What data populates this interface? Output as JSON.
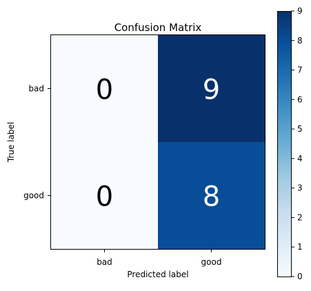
{
  "chart_data": {
    "type": "heatmap",
    "title": "Confusion Matrix",
    "xlabel": "Predicted label",
    "ylabel": "True label",
    "row_labels": [
      "bad",
      "good"
    ],
    "col_labels": [
      "bad",
      "good"
    ],
    "values": [
      [
        0,
        9
      ],
      [
        0,
        8
      ]
    ],
    "cell_labels": [
      [
        "0",
        "9"
      ],
      [
        "0",
        "8"
      ]
    ],
    "colormap": "Blues",
    "colorbar": {
      "min": 0,
      "max": 9,
      "ticks": [
        "0",
        "1",
        "2",
        "3",
        "4",
        "5",
        "6",
        "7",
        "8",
        "9"
      ]
    },
    "grid": false,
    "colors": {
      "low": "#f7fbff",
      "high": "#08306b",
      "text_dark": "#000000",
      "text_light": "#ffffff"
    }
  }
}
